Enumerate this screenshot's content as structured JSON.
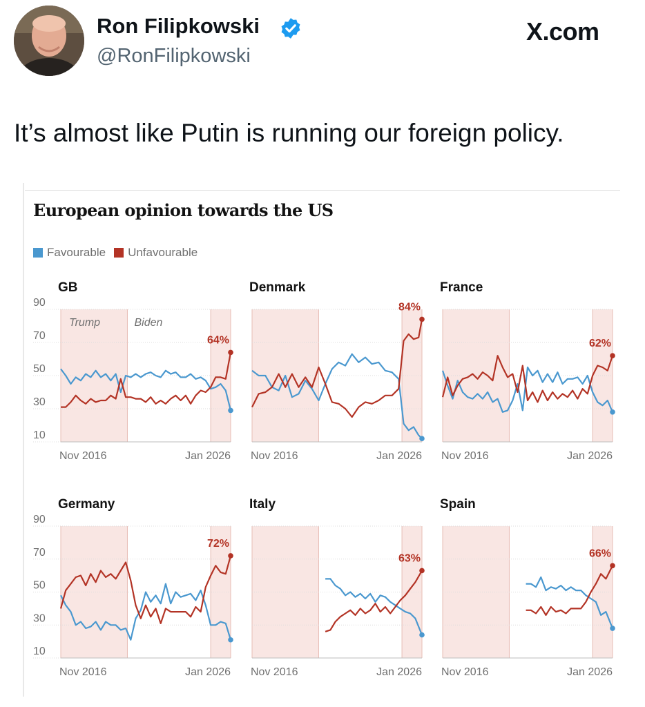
{
  "header": {
    "display_name": "Ron Filipkowski",
    "handle": "@RonFilipkowski",
    "site": "X.com"
  },
  "tweet": {
    "text": "It’s almost like Putin is running our foreign policy."
  },
  "graphic": {
    "title": "European opinion towards the US",
    "legend": [
      "Favourable",
      "Unfavourable"
    ]
  },
  "colors": {
    "favourable": "#4a98cf",
    "unfavourable": "#b33325",
    "shade": "#f9e6e3",
    "verified": "#1d9bf0"
  },
  "chart_data": {
    "type": "line",
    "ylim": [
      10,
      90
    ],
    "y_ticks": [
      "90",
      "70",
      "50",
      "30",
      "10"
    ],
    "x_ticks": [
      "Nov 2016",
      "Jan 2026"
    ],
    "x_range": [
      2016.0,
      2026.2
    ],
    "shaded_periods": [
      [
        2016.0,
        2020.0
      ],
      [
        2025.0,
        2026.2
      ]
    ],
    "annotations": [
      "Trump",
      "Biden"
    ],
    "panels": [
      {
        "name": "GB",
        "final_label": "64%",
        "series": [
          {
            "name": "Favourable",
            "x": [
              2016.0,
              2016.3,
              2016.6,
              2016.9,
              2017.2,
              2017.5,
              2017.8,
              2018.1,
              2018.4,
              2018.7,
              2019.0,
              2019.3,
              2019.6,
              2019.9,
              2020.2,
              2020.5,
              2020.8,
              2021.1,
              2021.4,
              2021.7,
              2022.0,
              2022.3,
              2022.6,
              2022.9,
              2023.2,
              2023.5,
              2023.8,
              2024.1,
              2024.4,
              2024.7,
              2025.0,
              2025.3,
              2025.6,
              2025.9,
              2026.2
            ],
            "values": [
              54,
              50,
              45,
              49,
              47,
              51,
              49,
              53,
              49,
              51,
              47,
              51,
              40,
              50,
              49,
              51,
              49,
              51,
              52,
              50,
              49,
              53,
              51,
              52,
              49,
              49,
              51,
              48,
              49,
              47,
              42,
              43,
              45,
              41,
              29
            ]
          },
          {
            "name": "Unfavourable",
            "x": [
              2016.0,
              2016.3,
              2016.6,
              2016.9,
              2017.2,
              2017.5,
              2017.8,
              2018.1,
              2018.4,
              2018.7,
              2019.0,
              2019.3,
              2019.6,
              2019.9,
              2020.2,
              2020.5,
              2020.8,
              2021.1,
              2021.4,
              2021.7,
              2022.0,
              2022.3,
              2022.6,
              2022.9,
              2023.2,
              2023.5,
              2023.8,
              2024.1,
              2024.4,
              2024.7,
              2025.0,
              2025.3,
              2025.6,
              2025.9,
              2026.2
            ],
            "values": [
              31,
              31,
              34,
              38,
              35,
              33,
              36,
              34,
              35,
              35,
              38,
              36,
              48,
              37,
              37,
              36,
              36,
              34,
              37,
              33,
              35,
              33,
              36,
              38,
              35,
              38,
              33,
              38,
              41,
              40,
              43,
              49,
              49,
              48,
              64
            ]
          }
        ]
      },
      {
        "name": "Denmark",
        "final_label": "84%",
        "series": [
          {
            "name": "Favourable",
            "x": [
              2016.0,
              2016.4,
              2016.8,
              2017.2,
              2017.6,
              2018.0,
              2018.4,
              2018.8,
              2019.2,
              2019.6,
              2020.0,
              2020.4,
              2020.8,
              2021.2,
              2021.6,
              2022.0,
              2022.4,
              2022.8,
              2023.2,
              2023.6,
              2024.0,
              2024.4,
              2024.8,
              2025.1,
              2025.4,
              2025.7,
              2026.0,
              2026.2
            ],
            "values": [
              53,
              50,
              50,
              43,
              41,
              50,
              37,
              39,
              47,
              42,
              35,
              45,
              54,
              58,
              56,
              63,
              58,
              61,
              57,
              58,
              53,
              52,
              48,
              21,
              17,
              19,
              14,
              12
            ]
          },
          {
            "name": "Unfavourable",
            "x": [
              2016.0,
              2016.4,
              2016.8,
              2017.2,
              2017.6,
              2018.0,
              2018.4,
              2018.8,
              2019.2,
              2019.6,
              2020.0,
              2020.4,
              2020.8,
              2021.2,
              2021.6,
              2022.0,
              2022.4,
              2022.8,
              2023.2,
              2023.6,
              2024.0,
              2024.4,
              2024.8,
              2025.1,
              2025.4,
              2025.7,
              2026.0,
              2026.2
            ],
            "values": [
              31,
              39,
              40,
              43,
              51,
              43,
              51,
              43,
              49,
              43,
              55,
              45,
              34,
              33,
              30,
              25,
              31,
              34,
              33,
              35,
              38,
              38,
              42,
              71,
              75,
              72,
              73,
              84
            ]
          }
        ]
      },
      {
        "name": "France",
        "final_label": "62%",
        "series": [
          {
            "name": "Favourable",
            "x": [
              2016.0,
              2016.3,
              2016.6,
              2016.9,
              2017.2,
              2017.5,
              2017.8,
              2018.1,
              2018.4,
              2018.7,
              2019.0,
              2019.3,
              2019.6,
              2019.9,
              2020.2,
              2020.5,
              2020.8,
              2021.1,
              2021.4,
              2021.7,
              2022.0,
              2022.3,
              2022.6,
              2022.9,
              2023.2,
              2023.5,
              2023.8,
              2024.1,
              2024.4,
              2024.7,
              2025.0,
              2025.3,
              2025.6,
              2025.9,
              2026.2
            ],
            "values": [
              53,
              44,
              36,
              47,
              40,
              37,
              36,
              39,
              36,
              40,
              34,
              36,
              28,
              29,
              35,
              45,
              29,
              55,
              50,
              53,
              46,
              51,
              46,
              52,
              45,
              48,
              48,
              49,
              45,
              50,
              40,
              34,
              32,
              35,
              28
            ]
          },
          {
            "name": "Unfavourable",
            "x": [
              2016.0,
              2016.3,
              2016.6,
              2016.9,
              2017.2,
              2017.5,
              2017.8,
              2018.1,
              2018.4,
              2018.7,
              2019.0,
              2019.3,
              2019.6,
              2019.9,
              2020.2,
              2020.5,
              2020.8,
              2021.1,
              2021.4,
              2021.7,
              2022.0,
              2022.3,
              2022.6,
              2022.9,
              2023.2,
              2023.5,
              2023.8,
              2024.1,
              2024.4,
              2024.7,
              2025.0,
              2025.3,
              2025.6,
              2025.9,
              2026.2
            ],
            "values": [
              37,
              49,
              38,
              44,
              48,
              49,
              51,
              48,
              52,
              50,
              47,
              62,
              55,
              49,
              51,
              40,
              56,
              35,
              40,
              34,
              41,
              35,
              40,
              36,
              39,
              37,
              41,
              36,
              42,
              39,
              50,
              56,
              55,
              53,
              62
            ]
          }
        ]
      },
      {
        "name": "Germany",
        "final_label": "72%",
        "series": [
          {
            "name": "Favourable",
            "x": [
              2016.0,
              2016.3,
              2016.6,
              2016.9,
              2017.2,
              2017.5,
              2017.8,
              2018.1,
              2018.4,
              2018.7,
              2019.0,
              2019.3,
              2019.6,
              2019.9,
              2020.2,
              2020.5,
              2020.8,
              2021.1,
              2021.4,
              2021.7,
              2022.0,
              2022.3,
              2022.6,
              2022.9,
              2023.2,
              2023.5,
              2023.8,
              2024.1,
              2024.4,
              2024.7,
              2025.0,
              2025.3,
              2025.6,
              2025.9,
              2026.2
            ],
            "values": [
              48,
              42,
              38,
              30,
              32,
              28,
              29,
              32,
              27,
              32,
              30,
              30,
              27,
              28,
              21,
              34,
              39,
              50,
              44,
              48,
              43,
              55,
              43,
              50,
              47,
              48,
              49,
              45,
              51,
              42,
              30,
              30,
              32,
              31,
              21
            ]
          },
          {
            "name": "Unfavourable",
            "x": [
              2016.0,
              2016.3,
              2016.6,
              2016.9,
              2017.2,
              2017.5,
              2017.8,
              2018.1,
              2018.4,
              2018.7,
              2019.0,
              2019.3,
              2019.6,
              2019.9,
              2020.2,
              2020.5,
              2020.8,
              2021.1,
              2021.4,
              2021.7,
              2022.0,
              2022.3,
              2022.6,
              2022.9,
              2023.2,
              2023.5,
              2023.8,
              2024.1,
              2024.4,
              2024.7,
              2025.0,
              2025.3,
              2025.6,
              2025.9,
              2026.2
            ],
            "values": [
              40,
              51,
              55,
              59,
              60,
              54,
              61,
              56,
              63,
              59,
              61,
              58,
              63,
              68,
              57,
              42,
              34,
              42,
              35,
              40,
              31,
              40,
              38,
              38,
              38,
              38,
              35,
              41,
              38,
              53,
              60,
              66,
              62,
              61,
              72
            ]
          }
        ]
      },
      {
        "name": "Italy",
        "final_label": "63%",
        "series": [
          {
            "name": "Favourable",
            "x": [
              2020.4,
              2020.7,
              2021.0,
              2021.3,
              2021.6,
              2021.9,
              2022.2,
              2022.5,
              2022.8,
              2023.1,
              2023.4,
              2023.7,
              2024.0,
              2024.3,
              2024.6,
              2024.9,
              2025.2,
              2025.5,
              2025.8,
              2026.2
            ],
            "values": [
              58,
              58,
              54,
              52,
              48,
              50,
              47,
              49,
              46,
              49,
              44,
              48,
              47,
              44,
              42,
              40,
              38,
              37,
              34,
              24
            ]
          },
          {
            "name": "Unfavourable",
            "x": [
              2020.4,
              2020.7,
              2021.0,
              2021.3,
              2021.6,
              2021.9,
              2022.2,
              2022.5,
              2022.8,
              2023.1,
              2023.4,
              2023.7,
              2024.0,
              2024.3,
              2024.6,
              2024.9,
              2025.2,
              2025.5,
              2025.8,
              2026.2
            ],
            "values": [
              26,
              27,
              32,
              35,
              37,
              39,
              36,
              40,
              37,
              39,
              43,
              38,
              41,
              37,
              41,
              45,
              48,
              52,
              56,
              63
            ]
          }
        ]
      },
      {
        "name": "Spain",
        "final_label": "66%",
        "series": [
          {
            "name": "Favourable",
            "x": [
              2021.0,
              2021.3,
              2021.6,
              2021.9,
              2022.2,
              2022.5,
              2022.8,
              2023.1,
              2023.4,
              2023.7,
              2024.0,
              2024.3,
              2024.6,
              2024.9,
              2025.2,
              2025.5,
              2025.8,
              2026.2
            ],
            "values": [
              55,
              55,
              53,
              59,
              51,
              53,
              52,
              54,
              51,
              53,
              51,
              51,
              48,
              46,
              44,
              36,
              38,
              28
            ]
          },
          {
            "name": "Unfavourable",
            "x": [
              2021.0,
              2021.3,
              2021.6,
              2021.9,
              2022.2,
              2022.5,
              2022.8,
              2023.1,
              2023.4,
              2023.7,
              2024.0,
              2024.3,
              2024.6,
              2024.9,
              2025.2,
              2025.5,
              2025.8,
              2026.2
            ],
            "values": [
              39,
              39,
              37,
              41,
              36,
              41,
              38,
              39,
              37,
              40,
              40,
              40,
              44,
              50,
              55,
              61,
              58,
              66
            ]
          }
        ]
      }
    ]
  }
}
